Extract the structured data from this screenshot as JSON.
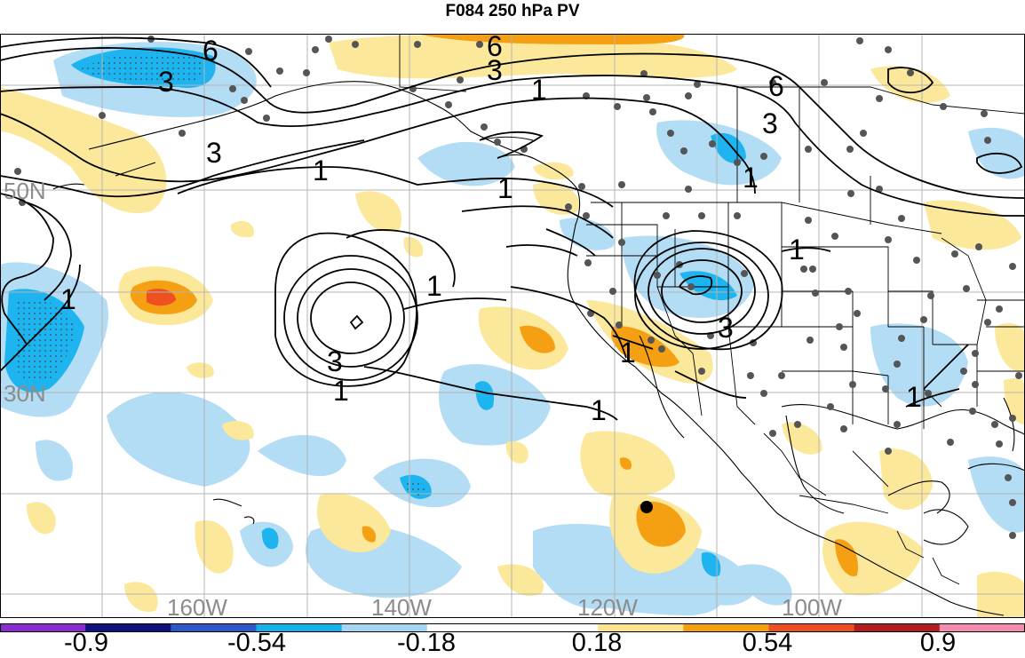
{
  "title": "F084 250 hPa PV",
  "colors": {
    "light_blue": "#b3dcf5",
    "mid_blue": "#1eb4ef",
    "light_yellow": "#fbe89a",
    "orange": "#f5a013",
    "red_orange": "#ee5020",
    "contour": "#000000",
    "grid": "#b4b4b4",
    "station": "#555555"
  },
  "lat_labels": [
    "50N",
    "30N"
  ],
  "lon_labels": [
    "160W",
    "140W",
    "120W",
    "100W"
  ],
  "contour_labels": [
    "6",
    "3",
    "6",
    "3",
    "1",
    "6",
    "3",
    "1",
    "3",
    "1",
    "1",
    "1",
    "1",
    "3",
    "1",
    "1",
    "1",
    "3",
    "1",
    "1"
  ],
  "colorbar": {
    "colors": [
      "#8a2cd0",
      "#10107e",
      "#2b5ac8",
      "#18b0ec",
      "#a4d6f3",
      "#ffffff",
      "#ffffff",
      "#fde48a",
      "#f5a013",
      "#ec5020",
      "#b11c1c",
      "#f58cb0"
    ],
    "labels": [
      "-0.9",
      "-0.54",
      "-0.18",
      "0.18",
      "0.54",
      "0.9"
    ]
  }
}
